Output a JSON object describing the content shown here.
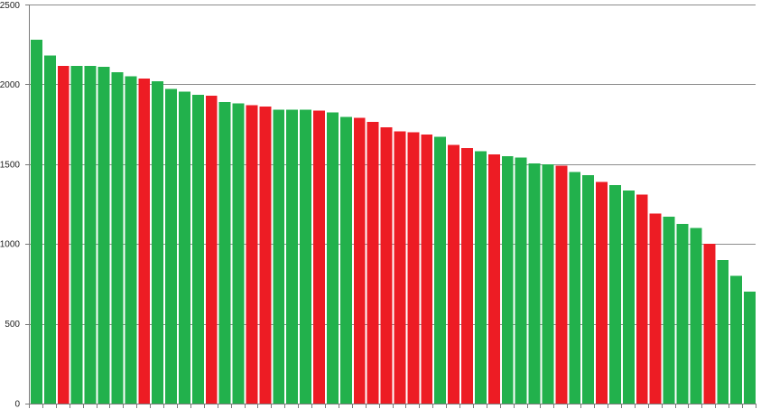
{
  "chart_data": {
    "type": "bar",
    "title": "",
    "xlabel": "",
    "ylabel": "",
    "ylim": [
      0,
      2500
    ],
    "y_ticks": [
      0,
      500,
      1000,
      1500,
      2000,
      2500
    ],
    "grid": "horizontal",
    "legend": "none",
    "colors": {
      "positive": "#22b14c",
      "negative": "#ed1c24"
    },
    "values": [
      2280,
      2180,
      2115,
      2115,
      2115,
      2110,
      2075,
      2050,
      2035,
      2020,
      1970,
      1955,
      1935,
      1930,
      1890,
      1880,
      1870,
      1860,
      1840,
      1840,
      1840,
      1835,
      1825,
      1795,
      1790,
      1765,
      1730,
      1705,
      1700,
      1685,
      1670,
      1620,
      1600,
      1580,
      1560,
      1550,
      1540,
      1505,
      1500,
      1490,
      1450,
      1430,
      1390,
      1370,
      1335,
      1310,
      1190,
      1170,
      1125,
      1100,
      1000,
      900,
      800,
      700
    ],
    "bar_status": [
      "positive",
      "positive",
      "negative",
      "positive",
      "positive",
      "positive",
      "positive",
      "positive",
      "negative",
      "positive",
      "positive",
      "positive",
      "positive",
      "negative",
      "positive",
      "positive",
      "negative",
      "negative",
      "positive",
      "positive",
      "positive",
      "negative",
      "positive",
      "positive",
      "negative",
      "negative",
      "negative",
      "negative",
      "negative",
      "negative",
      "positive",
      "negative",
      "negative",
      "positive",
      "negative",
      "positive",
      "positive",
      "positive",
      "positive",
      "negative",
      "positive",
      "positive",
      "negative",
      "positive",
      "positive",
      "negative",
      "negative",
      "positive",
      "positive",
      "positive",
      "negative",
      "positive",
      "positive",
      "positive"
    ]
  }
}
